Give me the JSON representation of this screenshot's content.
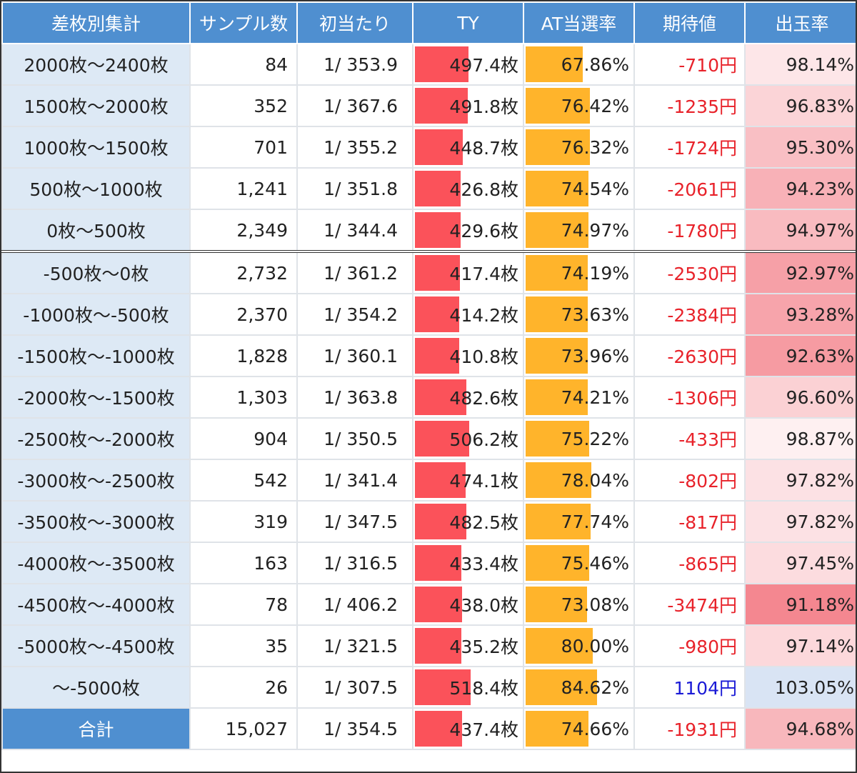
{
  "headers": [
    "差枚別集計",
    "サンプル数",
    "初当たり",
    "TY",
    "AT当選率",
    "期待値",
    "出玉率"
  ],
  "colors": {
    "header_bg": "#4f8fd0",
    "label_bg": "#dde9f5",
    "ty_bar": "#fb525a",
    "at_bar": "#ffb42b",
    "negative_ev": "#e8222a",
    "positive_ev": "#1a1ad6",
    "rate_red": "#f4858e",
    "rate_blue": "#d9e4f4"
  },
  "rows": [
    {
      "label": "2000枚〜2400枚",
      "samples": "84",
      "first_hit": "1/ 353.9",
      "ty": "497.4枚",
      "ty_value": 497.4,
      "at_rate": "67.86%",
      "at_value": 67.86,
      "ev": "-710円",
      "ev_value": -710,
      "payout": "98.14%",
      "payout_value": 98.14,
      "group_break": false
    },
    {
      "label": "1500枚〜2000枚",
      "samples": "352",
      "first_hit": "1/ 367.6",
      "ty": "491.8枚",
      "ty_value": 491.8,
      "at_rate": "76.42%",
      "at_value": 76.42,
      "ev": "-1235円",
      "ev_value": -1235,
      "payout": "96.83%",
      "payout_value": 96.83,
      "group_break": false
    },
    {
      "label": "1000枚〜1500枚",
      "samples": "701",
      "first_hit": "1/ 355.2",
      "ty": "448.7枚",
      "ty_value": 448.7,
      "at_rate": "76.32%",
      "at_value": 76.32,
      "ev": "-1724円",
      "ev_value": -1724,
      "payout": "95.30%",
      "payout_value": 95.3,
      "group_break": false
    },
    {
      "label": "500枚〜1000枚",
      "samples": "1,241",
      "first_hit": "1/ 351.8",
      "ty": "426.8枚",
      "ty_value": 426.8,
      "at_rate": "74.54%",
      "at_value": 74.54,
      "ev": "-2061円",
      "ev_value": -2061,
      "payout": "94.23%",
      "payout_value": 94.23,
      "group_break": false
    },
    {
      "label": "0枚〜500枚",
      "samples": "2,349",
      "first_hit": "1/ 344.4",
      "ty": "429.6枚",
      "ty_value": 429.6,
      "at_rate": "74.97%",
      "at_value": 74.97,
      "ev": "-1780円",
      "ev_value": -1780,
      "payout": "94.97%",
      "payout_value": 94.97,
      "group_break": false
    },
    {
      "label": "-500枚〜0枚",
      "samples": "2,732",
      "first_hit": "1/ 361.2",
      "ty": "417.4枚",
      "ty_value": 417.4,
      "at_rate": "74.19%",
      "at_value": 74.19,
      "ev": "-2530円",
      "ev_value": -2530,
      "payout": "92.97%",
      "payout_value": 92.97,
      "group_break": true
    },
    {
      "label": "-1000枚〜-500枚",
      "samples": "2,370",
      "first_hit": "1/ 354.2",
      "ty": "414.2枚",
      "ty_value": 414.2,
      "at_rate": "73.63%",
      "at_value": 73.63,
      "ev": "-2384円",
      "ev_value": -2384,
      "payout": "93.28%",
      "payout_value": 93.28,
      "group_break": false
    },
    {
      "label": "-1500枚〜-1000枚",
      "samples": "1,828",
      "first_hit": "1/ 360.1",
      "ty": "410.8枚",
      "ty_value": 410.8,
      "at_rate": "73.96%",
      "at_value": 73.96,
      "ev": "-2630円",
      "ev_value": -2630,
      "payout": "92.63%",
      "payout_value": 92.63,
      "group_break": false
    },
    {
      "label": "-2000枚〜-1500枚",
      "samples": "1,303",
      "first_hit": "1/ 363.8",
      "ty": "482.6枚",
      "ty_value": 482.6,
      "at_rate": "74.21%",
      "at_value": 74.21,
      "ev": "-1306円",
      "ev_value": -1306,
      "payout": "96.60%",
      "payout_value": 96.6,
      "group_break": false
    },
    {
      "label": "-2500枚〜-2000枚",
      "samples": "904",
      "first_hit": "1/ 350.5",
      "ty": "506.2枚",
      "ty_value": 506.2,
      "at_rate": "75.22%",
      "at_value": 75.22,
      "ev": "-433円",
      "ev_value": -433,
      "payout": "98.87%",
      "payout_value": 98.87,
      "group_break": false
    },
    {
      "label": "-3000枚〜-2500枚",
      "samples": "542",
      "first_hit": "1/ 341.4",
      "ty": "474.1枚",
      "ty_value": 474.1,
      "at_rate": "78.04%",
      "at_value": 78.04,
      "ev": "-802円",
      "ev_value": -802,
      "payout": "97.82%",
      "payout_value": 97.82,
      "group_break": false
    },
    {
      "label": "-3500枚〜-3000枚",
      "samples": "319",
      "first_hit": "1/ 347.5",
      "ty": "482.5枚",
      "ty_value": 482.5,
      "at_rate": "77.74%",
      "at_value": 77.74,
      "ev": "-817円",
      "ev_value": -817,
      "payout": "97.82%",
      "payout_value": 97.82,
      "group_break": false
    },
    {
      "label": "-4000枚〜-3500枚",
      "samples": "163",
      "first_hit": "1/ 316.5",
      "ty": "433.4枚",
      "ty_value": 433.4,
      "at_rate": "75.46%",
      "at_value": 75.46,
      "ev": "-865円",
      "ev_value": -865,
      "payout": "97.45%",
      "payout_value": 97.45,
      "group_break": false
    },
    {
      "label": "-4500枚〜-4000枚",
      "samples": "78",
      "first_hit": "1/ 406.2",
      "ty": "438.0枚",
      "ty_value": 438.0,
      "at_rate": "73.08%",
      "at_value": 73.08,
      "ev": "-3474円",
      "ev_value": -3474,
      "payout": "91.18%",
      "payout_value": 91.18,
      "group_break": false
    },
    {
      "label": "-5000枚〜-4500枚",
      "samples": "35",
      "first_hit": "1/ 321.5",
      "ty": "435.2枚",
      "ty_value": 435.2,
      "at_rate": "80.00%",
      "at_value": 80.0,
      "ev": "-980円",
      "ev_value": -980,
      "payout": "97.14%",
      "payout_value": 97.14,
      "group_break": false
    },
    {
      "label": "〜-5000枚",
      "samples": "26",
      "first_hit": "1/ 307.5",
      "ty": "518.4枚",
      "ty_value": 518.4,
      "at_rate": "84.62%",
      "at_value": 84.62,
      "ev": "1104円",
      "ev_value": 1104,
      "payout": "103.05%",
      "payout_value": 103.05,
      "group_break": false
    }
  ],
  "total": {
    "label": "合計",
    "samples": "15,027",
    "first_hit": "1/ 354.5",
    "ty": "437.4枚",
    "ty_value": 437.4,
    "at_rate": "74.66%",
    "at_value": 74.66,
    "ev": "-1931円",
    "ev_value": -1931,
    "payout": "94.68%",
    "payout_value": 94.68
  }
}
